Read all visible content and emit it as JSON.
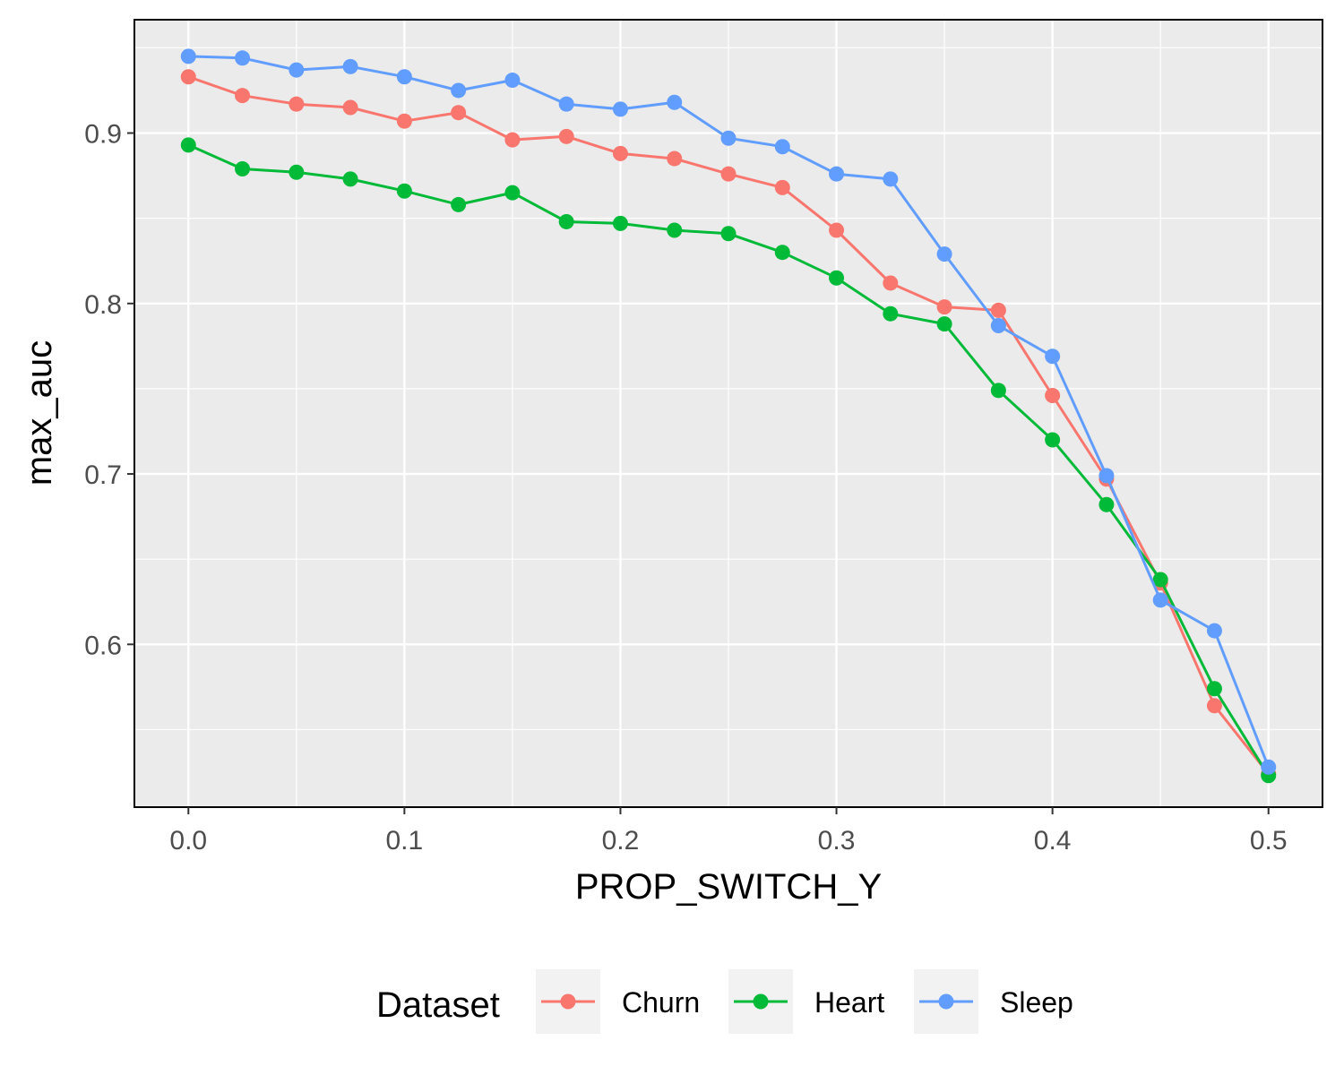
{
  "chart_data": {
    "type": "line",
    "title": "",
    "xlabel": "PROP_SWITCH_Y",
    "ylabel": "max_auc",
    "xlim": [
      -0.025,
      0.525
    ],
    "ylim": [
      0.5045,
      0.9665
    ],
    "x_ticks": [
      0.0,
      0.1,
      0.2,
      0.3,
      0.4,
      0.5
    ],
    "x_tick_labels": [
      "0.0",
      "0.1",
      "0.2",
      "0.3",
      "0.4",
      "0.5"
    ],
    "y_ticks": [
      0.6,
      0.7,
      0.8,
      0.9
    ],
    "y_tick_labels": [
      "0.6",
      "0.7",
      "0.8",
      "0.9"
    ],
    "y_minor_ticks": [
      0.55,
      0.65,
      0.75,
      0.85,
      0.95
    ],
    "x_minor_ticks": [
      0.05,
      0.15,
      0.25,
      0.35,
      0.45
    ],
    "grid": true,
    "panel_background": "#ebebeb",
    "grid_color": "#ffffff",
    "legend": {
      "title": "Dataset",
      "position": "bottom",
      "key_background": "#f2f2f2"
    },
    "x": [
      0.0,
      0.025,
      0.05,
      0.075,
      0.1,
      0.125,
      0.15,
      0.175,
      0.2,
      0.225,
      0.25,
      0.275,
      0.3,
      0.325,
      0.35,
      0.375,
      0.4,
      0.425,
      0.45,
      0.475,
      0.5
    ],
    "series": [
      {
        "name": "Churn",
        "color": "#F8766D",
        "values": [
          0.933,
          0.922,
          0.917,
          0.915,
          0.907,
          0.912,
          0.896,
          0.898,
          0.888,
          0.885,
          0.876,
          0.868,
          0.843,
          0.812,
          0.798,
          0.796,
          0.746,
          0.697,
          0.636,
          0.564,
          0.524
        ]
      },
      {
        "name": "Heart",
        "color": "#00BA38",
        "values": [
          0.893,
          0.879,
          0.877,
          0.873,
          0.866,
          0.858,
          0.865,
          0.848,
          0.847,
          0.843,
          0.841,
          0.83,
          0.815,
          0.794,
          0.788,
          0.749,
          0.72,
          0.682,
          0.638,
          0.574,
          0.523
        ]
      },
      {
        "name": "Sleep",
        "color": "#619CFF",
        "values": [
          0.945,
          0.944,
          0.937,
          0.939,
          0.933,
          0.925,
          0.931,
          0.917,
          0.914,
          0.918,
          0.897,
          0.892,
          0.876,
          0.873,
          0.829,
          0.787,
          0.769,
          0.699,
          0.626,
          0.608,
          0.528
        ]
      }
    ]
  }
}
